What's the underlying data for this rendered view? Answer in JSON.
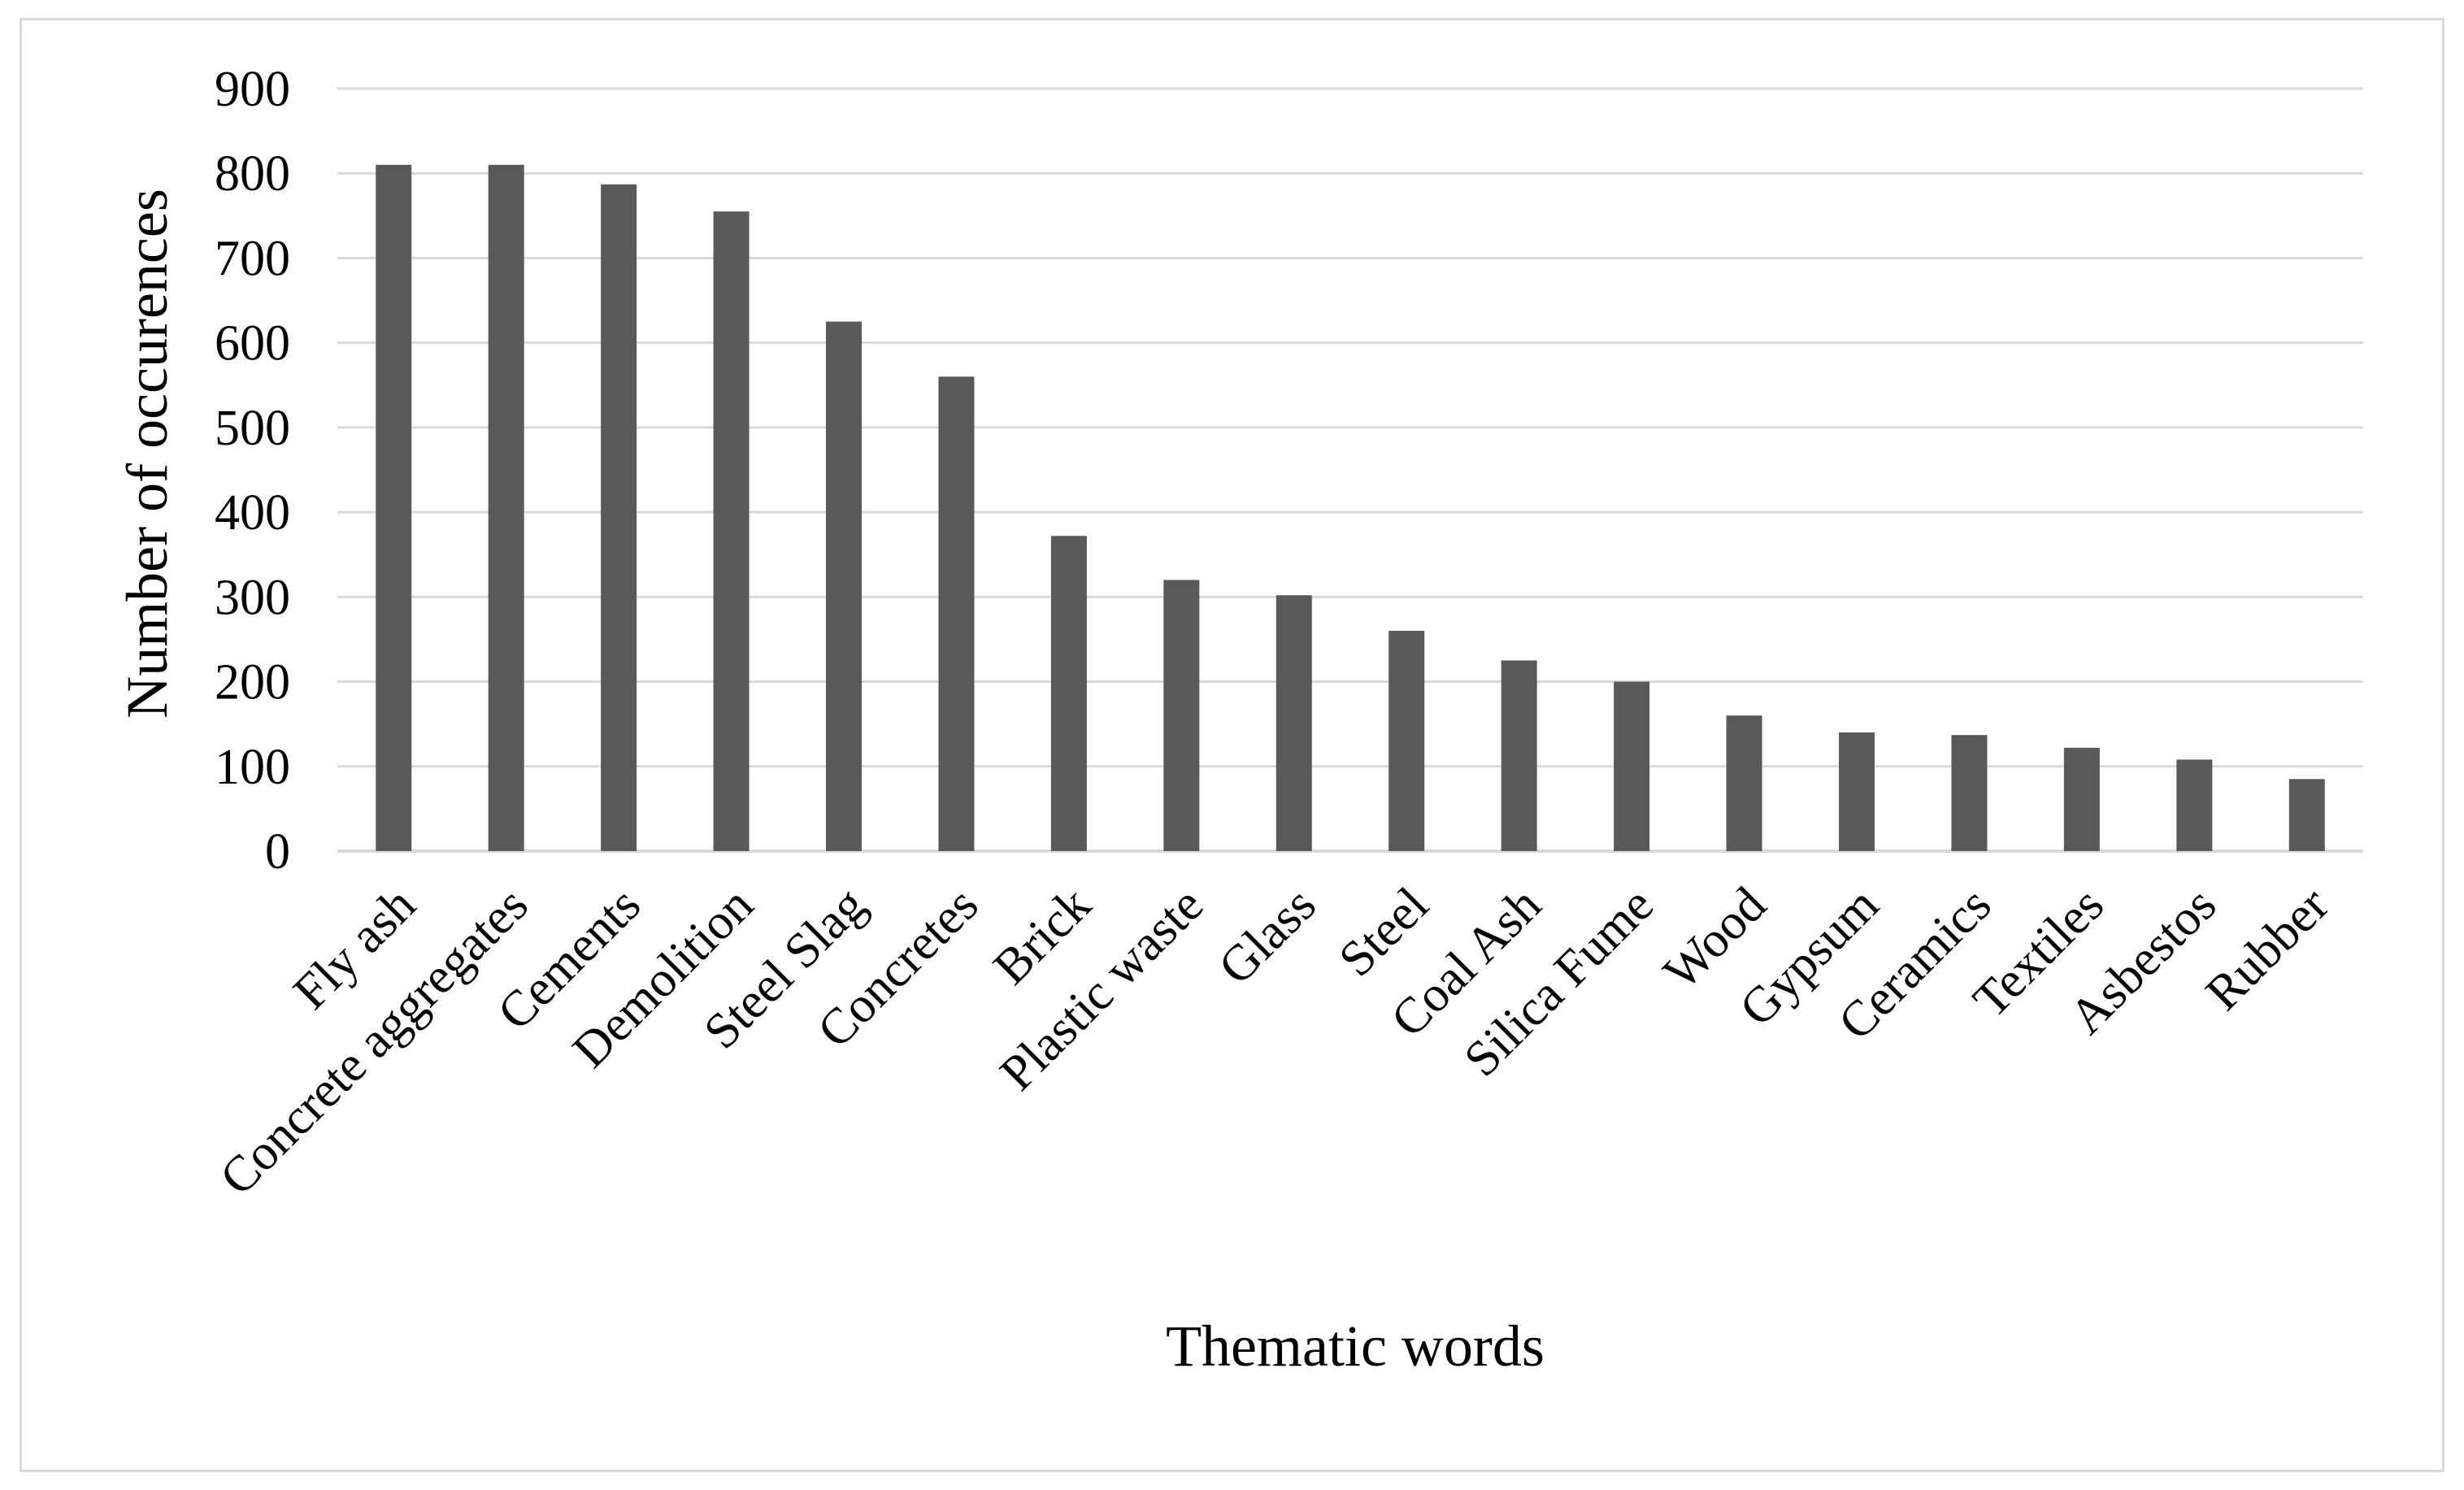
{
  "chart_data": {
    "type": "bar",
    "title": "",
    "xlabel": "Thematic words",
    "ylabel": "Number of occurences",
    "ylim": [
      0,
      900
    ],
    "yticks": [
      0,
      100,
      200,
      300,
      400,
      500,
      600,
      700,
      800,
      900
    ],
    "grid": true,
    "legend": "none",
    "bar_color": "#595959",
    "gridline_color": "#d9d9d9",
    "categories": [
      "Fly ash",
      "Concrete aggregates",
      "Cements",
      "Demolition",
      "Steel Slag",
      "Concretes",
      "Brick",
      "Plastic waste",
      "Glass",
      "Steel",
      "Coal Ash",
      "Silica Fume",
      "Wood",
      "Gypsum",
      "Ceramics",
      "Textiles",
      "Asbestos",
      "Rubber"
    ],
    "values": [
      810,
      810,
      787,
      755,
      625,
      560,
      372,
      320,
      302,
      260,
      225,
      200,
      160,
      140,
      137,
      122,
      108,
      85
    ]
  }
}
